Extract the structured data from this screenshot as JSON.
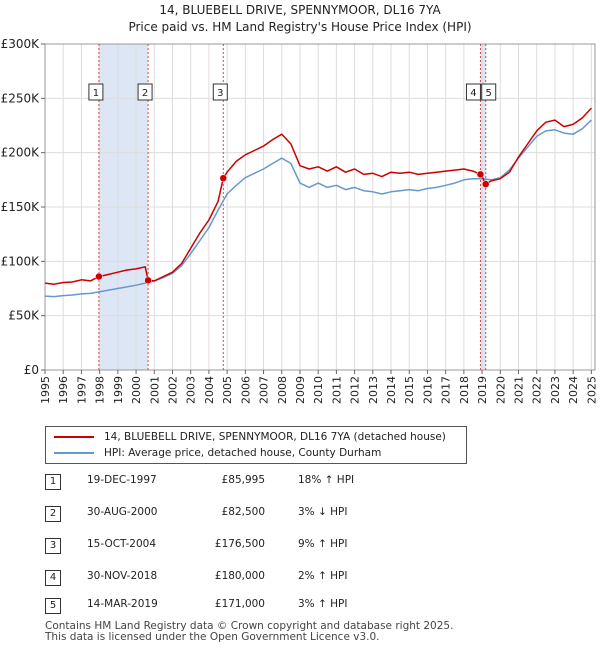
{
  "title_line1": "14, BLUEBELL DRIVE, SPENNYMOOR, DL16 7YA",
  "title_line2": "Price paid vs. HM Land Registry's House Price Index (HPI)",
  "colors": {
    "price_line": "#cc0000",
    "hpi_line": "#6699cc",
    "shade": "#dde6f5",
    "marker_line": "#dd4444",
    "grid": "#dddddd"
  },
  "chart_data": {
    "type": "line",
    "title": "Price paid vs. HM Land Registry's House Price Index (HPI)",
    "xlabel": "",
    "ylabel": "",
    "xlim": [
      1995,
      2025.2
    ],
    "ylim": [
      0,
      300000
    ],
    "x_ticks": [
      "1995",
      "1996",
      "1997",
      "1998",
      "1999",
      "2000",
      "2001",
      "2002",
      "2003",
      "2004",
      "2005",
      "2006",
      "2007",
      "2008",
      "2009",
      "2010",
      "2011",
      "2012",
      "2013",
      "2014",
      "2015",
      "2016",
      "2017",
      "2018",
      "2019",
      "2020",
      "2021",
      "2022",
      "2023",
      "2024",
      "2025"
    ],
    "y_ticks": [
      {
        "value": 0,
        "label": "£0"
      },
      {
        "value": 50000,
        "label": "£50K"
      },
      {
        "value": 100000,
        "label": "£100K"
      },
      {
        "value": 150000,
        "label": "£150K"
      },
      {
        "value": 200000,
        "label": "£200K"
      },
      {
        "value": 250000,
        "label": "£250K"
      },
      {
        "value": 300000,
        "label": "£300K"
      }
    ],
    "series": [
      {
        "name": "14, BLUEBELL DRIVE, SPENNYMOOR, DL16 7YA (detached house)",
        "color": "#cc0000",
        "x": [
          1995.0,
          1995.5,
          1996.0,
          1996.5,
          1997.0,
          1997.5,
          1997.96,
          1998.5,
          1999.0,
          1999.5,
          2000.0,
          2000.5,
          2000.66,
          2001.0,
          2001.5,
          2002.0,
          2002.5,
          2003.0,
          2003.5,
          2004.0,
          2004.5,
          2004.79,
          2005.0,
          2005.5,
          2006.0,
          2006.5,
          2007.0,
          2007.5,
          2008.0,
          2008.5,
          2009.0,
          2009.5,
          2010.0,
          2010.5,
          2011.0,
          2011.5,
          2012.0,
          2012.5,
          2013.0,
          2013.5,
          2014.0,
          2014.5,
          2015.0,
          2015.5,
          2016.0,
          2016.5,
          2017.0,
          2017.5,
          2018.0,
          2018.5,
          2018.91,
          2019.0,
          2019.2,
          2019.5,
          2020.0,
          2020.5,
          2021.0,
          2021.5,
          2022.0,
          2022.5,
          2023.0,
          2023.5,
          2024.0,
          2024.5,
          2025.0
        ],
        "y": [
          80000,
          79000,
          80500,
          81000,
          83000,
          82000,
          85995,
          88000,
          90000,
          92000,
          93000,
          95000,
          82500,
          82000,
          86000,
          90000,
          98000,
          112000,
          126000,
          138000,
          155000,
          176500,
          182000,
          192000,
          198000,
          202000,
          206000,
          212000,
          217000,
          208000,
          188000,
          185000,
          187000,
          183000,
          187000,
          182000,
          185000,
          180000,
          181000,
          178000,
          182000,
          181000,
          182000,
          180000,
          181000,
          182000,
          183000,
          184000,
          185000,
          183000,
          180000,
          178000,
          171000,
          174000,
          176000,
          182000,
          196000,
          208000,
          220000,
          228000,
          230000,
          224000,
          226000,
          232000,
          241000
        ]
      },
      {
        "name": "HPI: Average price, detached house, County Durham",
        "color": "#6699cc",
        "x": [
          1995.0,
          1995.5,
          1996.0,
          1996.5,
          1997.0,
          1997.5,
          1998.0,
          1998.5,
          1999.0,
          1999.5,
          2000.0,
          2000.5,
          2001.0,
          2001.5,
          2002.0,
          2002.5,
          2003.0,
          2003.5,
          2004.0,
          2004.5,
          2005.0,
          2005.5,
          2006.0,
          2006.5,
          2007.0,
          2007.5,
          2008.0,
          2008.5,
          2009.0,
          2009.5,
          2010.0,
          2010.5,
          2011.0,
          2011.5,
          2012.0,
          2012.5,
          2013.0,
          2013.5,
          2014.0,
          2014.5,
          2015.0,
          2015.5,
          2016.0,
          2016.5,
          2017.0,
          2017.5,
          2018.0,
          2018.5,
          2019.0,
          2019.5,
          2020.0,
          2020.5,
          2021.0,
          2021.5,
          2022.0,
          2022.5,
          2023.0,
          2023.5,
          2024.0,
          2024.5,
          2025.0
        ],
        "y": [
          68000,
          67500,
          68500,
          69000,
          70000,
          70500,
          72000,
          73500,
          75000,
          76500,
          78000,
          80000,
          82000,
          85000,
          89000,
          96000,
          107000,
          119000,
          131000,
          147000,
          162000,
          170000,
          177000,
          181000,
          185000,
          190000,
          195000,
          190000,
          172000,
          168000,
          172000,
          168000,
          170000,
          166000,
          168000,
          165000,
          164000,
          162000,
          164000,
          165000,
          166000,
          165000,
          167000,
          168000,
          170000,
          172000,
          175000,
          176000,
          176000,
          175000,
          177000,
          184000,
          195000,
          205000,
          215000,
          220000,
          221000,
          218000,
          217000,
          222000,
          230000
        ]
      }
    ],
    "shaded_periods": [
      [
        1997.96,
        2000.66
      ],
      [
        2018.91,
        2019.2
      ]
    ],
    "sales": [
      {
        "id": "1",
        "x": 1997.96,
        "price": 85995
      },
      {
        "id": "2",
        "x": 2000.66,
        "price": 82500
      },
      {
        "id": "3",
        "x": 2004.79,
        "price": 176500
      },
      {
        "id": "4",
        "x": 2018.91,
        "price": 180000
      },
      {
        "id": "5",
        "x": 2019.2,
        "price": 171000
      }
    ]
  },
  "legend": {
    "price_label": "14, BLUEBELL DRIVE, SPENNYMOOR, DL16 7YA (detached house)",
    "hpi_label": "HPI: Average price, detached house, County Durham"
  },
  "transactions": [
    {
      "num": "1",
      "date": "19-DEC-1997",
      "price": "£85,995",
      "hpi": "18% ↑ HPI"
    },
    {
      "num": "2",
      "date": "30-AUG-2000",
      "price": "£82,500",
      "hpi": "3% ↓ HPI"
    },
    {
      "num": "3",
      "date": "15-OCT-2004",
      "price": "£176,500",
      "hpi": "9% ↑ HPI"
    },
    {
      "num": "4",
      "date": "30-NOV-2018",
      "price": "£180,000",
      "hpi": "2% ↑ HPI"
    },
    {
      "num": "5",
      "date": "14-MAR-2019",
      "price": "£171,000",
      "hpi": "3% ↑ HPI"
    }
  ],
  "footer": {
    "line1": "Contains HM Land Registry data © Crown copyright and database right 2025.",
    "line2": "This data is licensed under the Open Government Licence v3.0."
  }
}
